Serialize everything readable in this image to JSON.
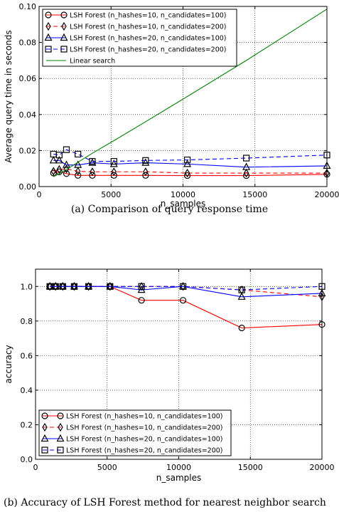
{
  "captions": {
    "a": "(a)  Comparison of query response time",
    "b": "(b)  Accuracy of LSH Forest method for nearest neighbor search"
  },
  "chart_data": [
    {
      "type": "line",
      "title": "",
      "xlabel": "n_samples",
      "ylabel": "Average query time in seconds",
      "xlim": [
        0,
        20000
      ],
      "ylim": [
        0,
        0.1
      ],
      "xticks": [
        "0",
        "5000",
        "10000",
        "15000",
        "20000"
      ],
      "yticks": [
        "0.00",
        "0.02",
        "0.04",
        "0.06",
        "0.08",
        "0.10"
      ],
      "grid": true,
      "legend_position": "top-left",
      "series": [
        {
          "name": "LSH Forest (n_hashes=10, n_candidates=100)",
          "color": "#ff0000",
          "dash": "solid",
          "marker": "circle",
          "x": [
            1000,
            1400,
            1900,
            2700,
            3700,
            5200,
            7400,
            10300,
            14400,
            20000
          ],
          "y": [
            0.0075,
            0.0082,
            0.0072,
            0.0062,
            0.0062,
            0.0062,
            0.0062,
            0.0061,
            0.0061,
            0.0068
          ]
        },
        {
          "name": "LSH Forest (n_hashes=10, n_candidates=200)",
          "color": "#ff0000",
          "dash": "dashed",
          "marker": "diamond",
          "x": [
            1000,
            1400,
            1900,
            2700,
            3700,
            5200,
            7400,
            10300,
            14400,
            20000
          ],
          "y": [
            0.0085,
            0.0095,
            0.0098,
            0.0085,
            0.0082,
            0.0082,
            0.0082,
            0.0075,
            0.0075,
            0.0075
          ]
        },
        {
          "name": "LSH Forest (n_hashes=20, n_candidates=100)",
          "color": "#0000ff",
          "dash": "solid",
          "marker": "triangle",
          "x": [
            1000,
            1400,
            1900,
            2700,
            3700,
            5200,
            7400,
            10300,
            14400,
            20000
          ],
          "y": [
            0.0145,
            0.0145,
            0.012,
            0.012,
            0.0132,
            0.0125,
            0.0132,
            0.0125,
            0.0108,
            0.0115
          ]
        },
        {
          "name": "LSH Forest (n_hashes=20, n_candidates=200)",
          "color": "#0000ff",
          "dash": "dashed",
          "marker": "square",
          "x": [
            1000,
            1400,
            1900,
            2700,
            3700,
            5200,
            7400,
            10300,
            14400,
            20000
          ],
          "y": [
            0.018,
            0.0175,
            0.0205,
            0.018,
            0.014,
            0.014,
            0.0145,
            0.0148,
            0.0158,
            0.0175
          ]
        },
        {
          "name": "Linear search",
          "color": "#008000",
          "dash": "solid",
          "marker": "none",
          "x": [
            1000,
            1400,
            1900,
            2700,
            3700,
            5200,
            7400,
            10300,
            14400,
            20000
          ],
          "y": [
            0.0055,
            0.0072,
            0.0095,
            0.0135,
            0.0185,
            0.0255,
            0.036,
            0.05,
            0.07,
            0.0985
          ]
        }
      ]
    },
    {
      "type": "line",
      "title": "",
      "xlabel": "n_samples",
      "ylabel": "accuracy",
      "xlim": [
        0,
        20000
      ],
      "ylim": [
        0,
        1.1
      ],
      "xticks": [
        "0",
        "5000",
        "10000",
        "15000",
        "20000"
      ],
      "yticks": [
        "0.0",
        "0.2",
        "0.4",
        "0.6",
        "0.8",
        "1.0"
      ],
      "grid": true,
      "legend_position": "bottom-left",
      "series": [
        {
          "name": "LSH Forest (n_hashes=10, n_candidates=100)",
          "color": "#ff0000",
          "dash": "solid",
          "marker": "circle",
          "x": [
            1000,
            1400,
            1900,
            2700,
            3700,
            5200,
            7400,
            10300,
            14400,
            20000
          ],
          "y": [
            1.0,
            1.0,
            1.0,
            1.0,
            1.0,
            1.0,
            0.92,
            0.92,
            0.76,
            0.78
          ]
        },
        {
          "name": "LSH Forest (n_hashes=10, n_candidates=200)",
          "color": "#ff0000",
          "dash": "dashed",
          "marker": "diamond",
          "x": [
            1000,
            1400,
            1900,
            2700,
            3700,
            5200,
            7400,
            10300,
            14400,
            20000
          ],
          "y": [
            1.0,
            1.0,
            1.0,
            1.0,
            1.0,
            1.0,
            1.0,
            1.0,
            0.98,
            0.94
          ]
        },
        {
          "name": "LSH Forest (n_hashes=20, n_candidates=100)",
          "color": "#0000ff",
          "dash": "solid",
          "marker": "triangle",
          "x": [
            1000,
            1400,
            1900,
            2700,
            3700,
            5200,
            7400,
            10300,
            14400,
            20000
          ],
          "y": [
            1.0,
            1.0,
            1.0,
            1.0,
            1.0,
            1.0,
            0.98,
            1.0,
            0.94,
            0.96
          ]
        },
        {
          "name": "LSH Forest (n_hashes=20, n_candidates=200)",
          "color": "#0000ff",
          "dash": "dashed",
          "marker": "square",
          "x": [
            1000,
            1400,
            1900,
            2700,
            3700,
            5200,
            7400,
            10300,
            14400,
            20000
          ],
          "y": [
            1.0,
            1.0,
            1.0,
            1.0,
            1.0,
            1.0,
            1.0,
            1.0,
            0.98,
            1.0
          ]
        }
      ]
    }
  ]
}
